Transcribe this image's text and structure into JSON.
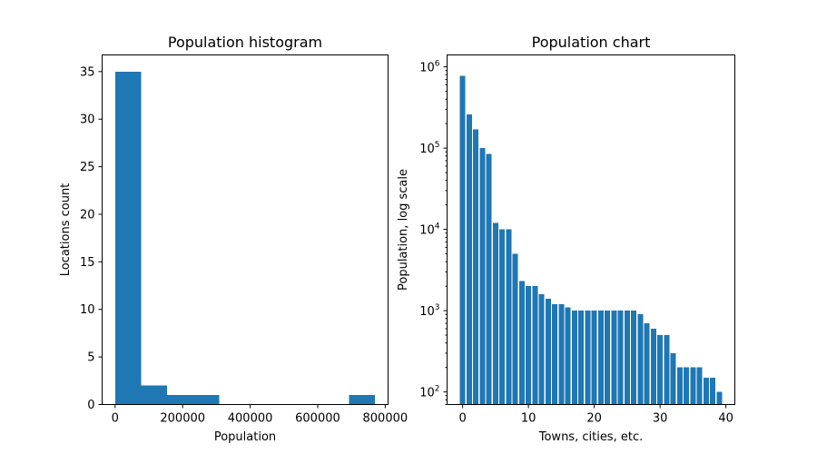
{
  "colors": {
    "bar": "#1f77b4",
    "axis": "#000000",
    "background": "#ffffff"
  },
  "chart_data": [
    {
      "type": "bar",
      "title": "Population histogram",
      "xlabel": "Population",
      "ylabel": "Locations count",
      "xlim": [
        -38500,
        808500
      ],
      "ylim": [
        0,
        36.75
      ],
      "xticks": [
        0,
        200000,
        400000,
        600000,
        800000
      ],
      "xtick_labels": [
        "0",
        "200000",
        "400000",
        "600000",
        "800000"
      ],
      "yticks": [
        0,
        5,
        10,
        15,
        20,
        25,
        30,
        35
      ],
      "ytick_labels": [
        "0",
        "5",
        "10",
        "15",
        "20",
        "25",
        "30",
        "35"
      ],
      "bin_edges": [
        0,
        77000,
        154000,
        231000,
        308000,
        385000,
        462000,
        539000,
        616000,
        693000,
        770000
      ],
      "values": [
        35,
        2,
        1,
        1,
        0,
        0,
        0,
        0,
        0,
        1
      ],
      "grid": false
    },
    {
      "type": "bar",
      "title": "Population chart",
      "xlabel": "Towns, cities, etc.",
      "ylabel": "Population, log scale",
      "yscale": "log",
      "xlim": [
        -2.36,
        41.36
      ],
      "ylim": [
        70,
        1400000
      ],
      "xticks": [
        0,
        10,
        20,
        30,
        40
      ],
      "xtick_labels": [
        "0",
        "10",
        "20",
        "30",
        "40"
      ],
      "yticks": [
        100,
        1000,
        10000,
        100000,
        1000000
      ],
      "ytick_labels": [
        {
          "base": "10",
          "exp": "2"
        },
        {
          "base": "10",
          "exp": "3"
        },
        {
          "base": "10",
          "exp": "4"
        },
        {
          "base": "10",
          "exp": "5"
        },
        {
          "base": "10",
          "exp": "6"
        }
      ],
      "x": [
        0,
        1,
        2,
        3,
        4,
        5,
        6,
        7,
        8,
        9,
        10,
        11,
        12,
        13,
        14,
        15,
        16,
        17,
        18,
        19,
        20,
        21,
        22,
        23,
        24,
        25,
        26,
        27,
        28,
        29,
        30,
        31,
        32,
        33,
        34,
        35,
        36,
        37,
        38,
        39
      ],
      "values": [
        770000,
        260000,
        170000,
        100000,
        85000,
        12000,
        10000,
        10000,
        5000,
        2300,
        2000,
        2000,
        1600,
        1400,
        1200,
        1200,
        1100,
        1000,
        1000,
        1000,
        1000,
        1000,
        1000,
        1000,
        1000,
        1000,
        1000,
        900,
        700,
        600,
        500,
        500,
        300,
        200,
        200,
        200,
        200,
        150,
        150,
        100
      ],
      "grid": false
    }
  ]
}
